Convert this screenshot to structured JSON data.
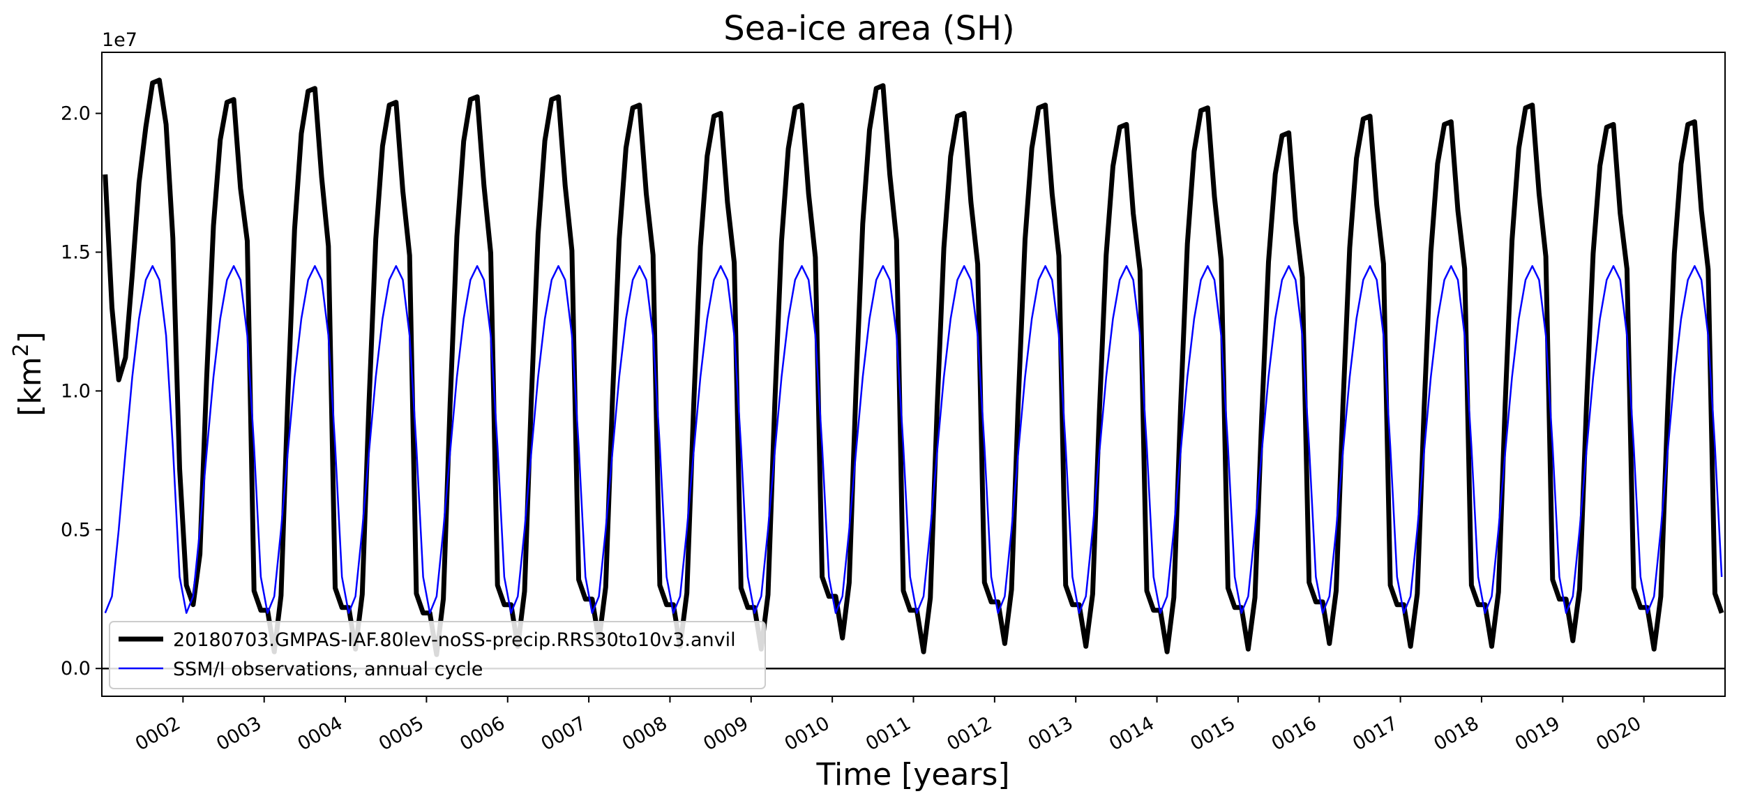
{
  "chart_data": {
    "type": "line",
    "title": "Sea-ice area (SH)",
    "xlabel": "Time [years]",
    "ylabel_base": "[km",
    "ylabel_sup": "2",
    "ylabel_end": "]",
    "y_offset_label": "1e7",
    "xlim": [
      1.0,
      21.0
    ],
    "ylim": [
      -0.1,
      2.22
    ],
    "x_ticks": [
      2,
      3,
      4,
      5,
      6,
      7,
      8,
      9,
      10,
      11,
      12,
      13,
      14,
      15,
      16,
      17,
      18,
      19,
      20
    ],
    "x_tick_labels": [
      "0002",
      "0003",
      "0004",
      "0005",
      "0006",
      "0007",
      "0008",
      "0009",
      "0010",
      "0011",
      "0012",
      "0013",
      "0014",
      "0015",
      "0016",
      "0017",
      "0018",
      "0019",
      "0020"
    ],
    "y_ticks": [
      0.0,
      0.5,
      1.0,
      1.5,
      2.0
    ],
    "y_tick_labels": [
      "0.0",
      "0.5",
      "1.0",
      "1.5",
      "2.0"
    ],
    "zero_line": true,
    "legend_position": "lower-left",
    "x_sampling": "monthly, x = year + (month - 0.5)/12 for years 0001-0020",
    "model_peaks": [
      2.12,
      2.05,
      2.09,
      2.04,
      2.06,
      2.06,
      2.03,
      2.0,
      2.03,
      2.1,
      2.0,
      2.03,
      1.96,
      2.02,
      1.93,
      1.99,
      1.97,
      2.03,
      1.96,
      1.97
    ],
    "model_minima": [
      0.23,
      0.06,
      0.07,
      0.05,
      0.08,
      0.1,
      0.08,
      0.07,
      0.11,
      0.06,
      0.09,
      0.08,
      0.06,
      0.07,
      0.09,
      0.08,
      0.08,
      0.1,
      0.07
    ],
    "model_jan0001": 1.78,
    "observed_annual_cycle": [
      0.2,
      0.26,
      0.5,
      0.78,
      1.05,
      1.26,
      1.4,
      1.45,
      1.4,
      1.2,
      0.8,
      0.33
    ],
    "series": [
      {
        "name": "20180703.GMPAS-IAF.80lev-noSS-precip.RRS30to10v3.anvil",
        "color": "#000000",
        "width": 7
      },
      {
        "name": "SSM/I observations, annual cycle",
        "color": "#0000ff",
        "width": 2.5
      }
    ]
  }
}
